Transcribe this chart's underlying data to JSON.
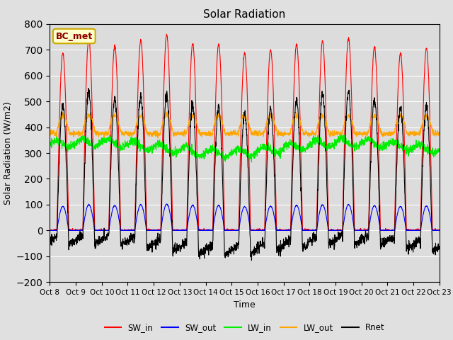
{
  "title": "Solar Radiation",
  "ylabel": "Solar Radiation (W/m2)",
  "xlabel": "Time",
  "ylim": [
    -200,
    800
  ],
  "yticks": [
    -200,
    -100,
    0,
    100,
    200,
    300,
    400,
    500,
    600,
    700,
    800
  ],
  "annotation": "BC_met",
  "legend": [
    "SW_in",
    "SW_out",
    "LW_in",
    "LW_out",
    "Rnet"
  ],
  "colors": {
    "SW_in": "#FF0000",
    "SW_out": "#0000FF",
    "LW_in": "#00EE00",
    "LW_out": "#FFA500",
    "Rnet": "#000000"
  },
  "fig_bg_color": "#E0E0E0",
  "plot_bg_color": "#DCDCDC",
  "num_days": 15,
  "ppd": 144,
  "start_day": 8,
  "lw_in_base": 320,
  "lw_out_base": 375,
  "sw_in_peak_factor": 0.13,
  "rnet_night": -60
}
